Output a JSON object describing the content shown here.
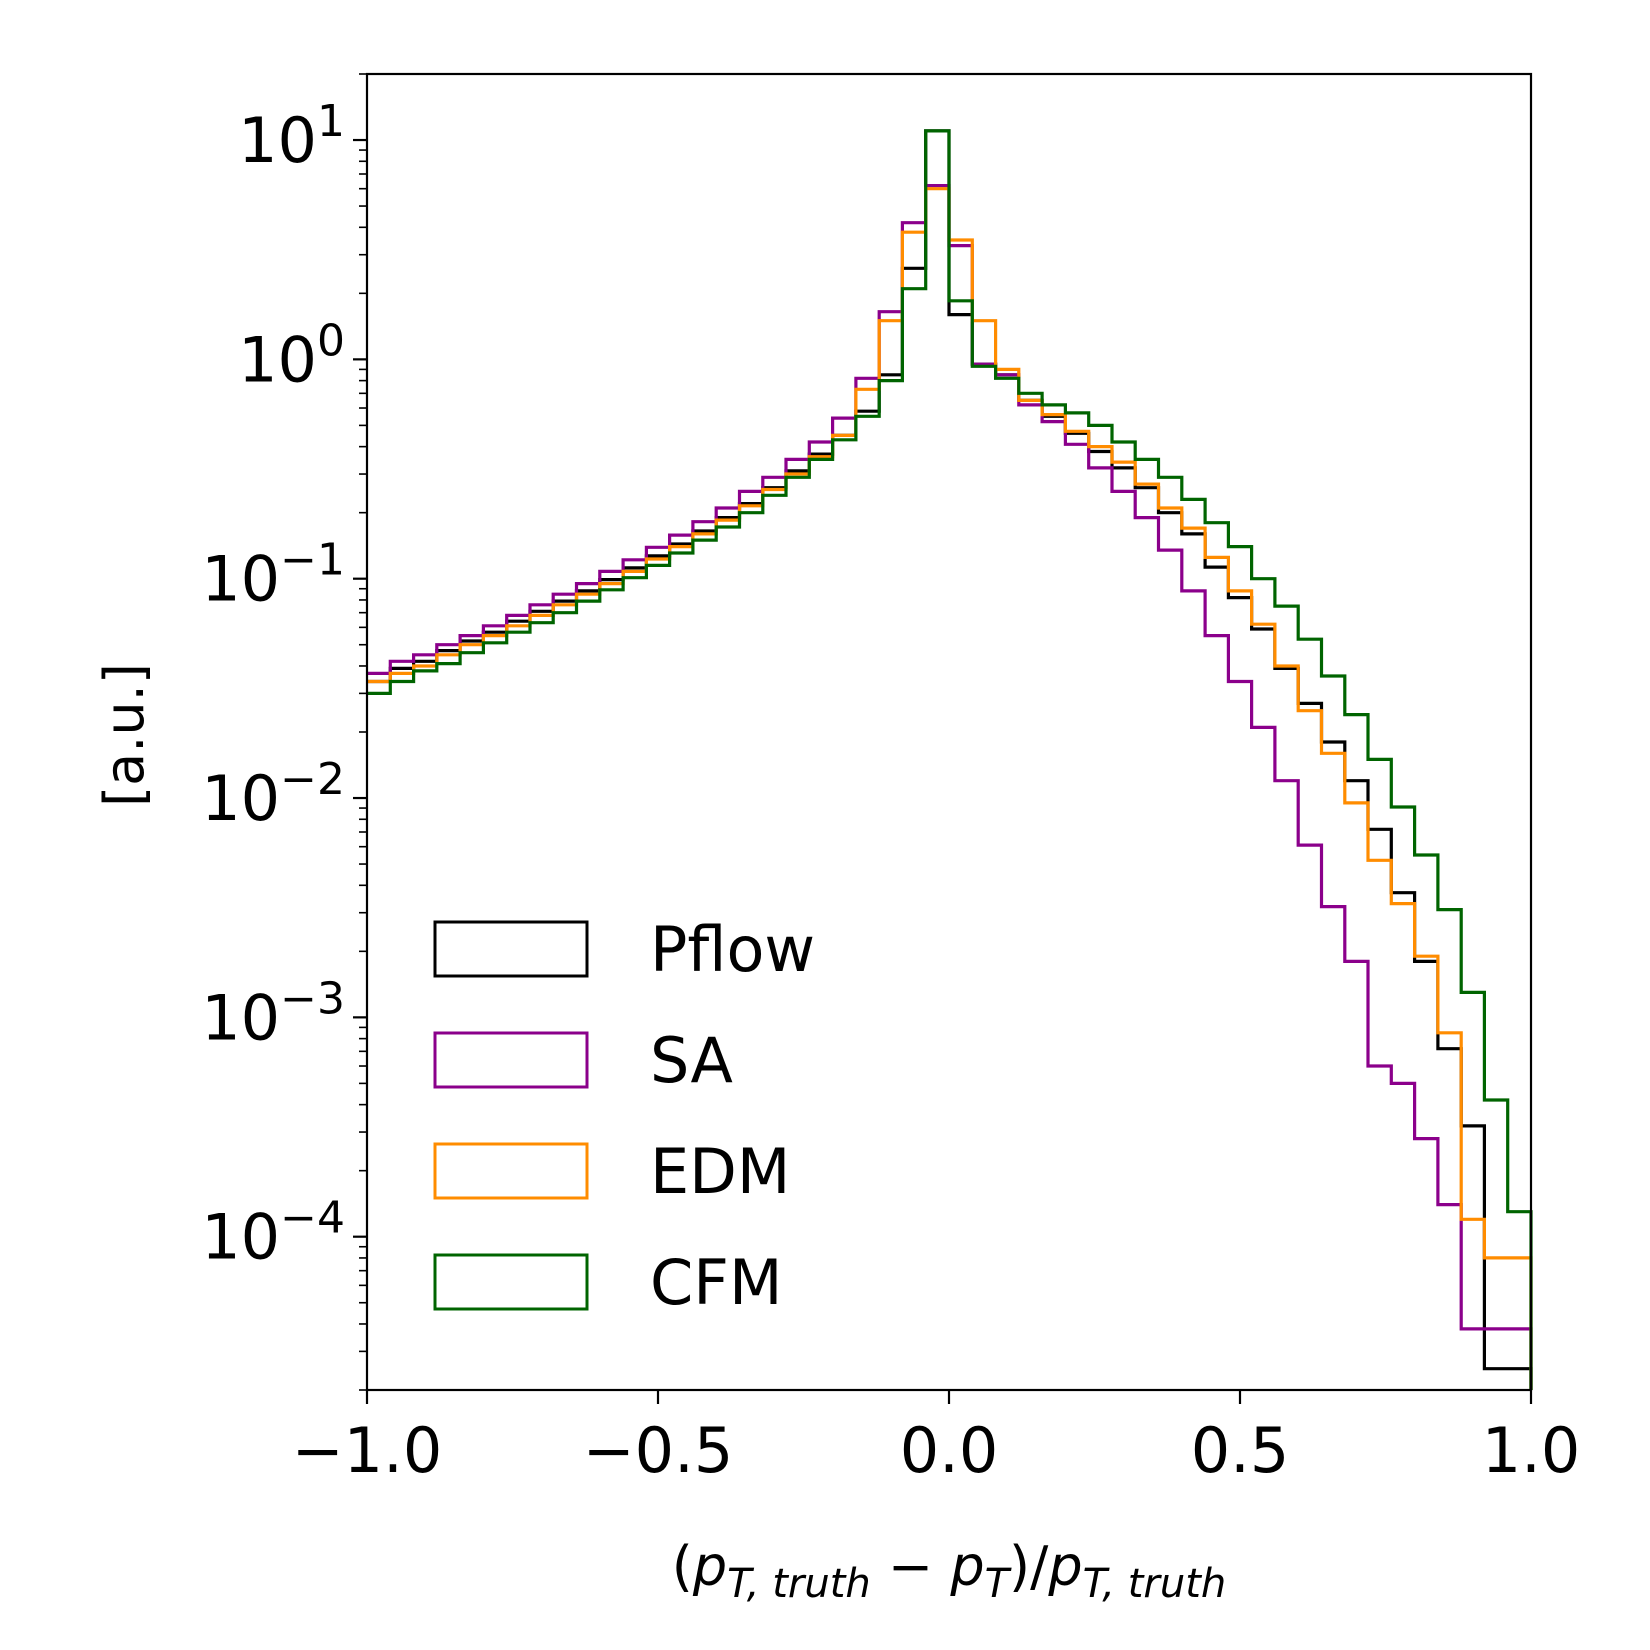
{
  "chart_data": {
    "type": "step-histogram",
    "title": "",
    "xlabel": "(p_T,truth − p_T)/p_T,truth",
    "ylabel": "[a.u.]",
    "xscale": "linear",
    "yscale": "log",
    "xlim": [
      -1.0,
      1.0
    ],
    "ylim": [
      2e-05,
      20
    ],
    "xticks": [
      -1.0,
      -0.5,
      0.0,
      0.5,
      1.0
    ],
    "xtick_labels": [
      "−1.0",
      "−0.5",
      "0.0",
      "0.5",
      "1.0"
    ],
    "yticks": [
      0.0001,
      0.001,
      0.01,
      0.1,
      1,
      10
    ],
    "ytick_labels": [
      {
        "base": "10",
        "exp": "−4"
      },
      {
        "base": "10",
        "exp": "−3"
      },
      {
        "base": "10",
        "exp": "−2"
      },
      {
        "base": "10",
        "exp": "−1"
      },
      {
        "base": "10",
        "exp": "0"
      },
      {
        "base": "10",
        "exp": "1"
      }
    ],
    "legend_position": "lower-left",
    "bin_edges": [
      -1.0,
      -0.96,
      -0.92,
      -0.88,
      -0.84,
      -0.8,
      -0.76,
      -0.72,
      -0.68,
      -0.64,
      -0.6,
      -0.56,
      -0.52,
      -0.48,
      -0.44,
      -0.4,
      -0.36,
      -0.32,
      -0.28,
      -0.24,
      -0.2,
      -0.16,
      -0.12,
      -0.08,
      -0.04,
      0.0,
      0.04,
      0.08,
      0.12,
      0.16,
      0.2,
      0.24,
      0.28,
      0.32,
      0.36,
      0.4,
      0.44,
      0.48,
      0.52,
      0.56,
      0.6,
      0.64,
      0.68,
      0.72,
      0.76,
      0.8,
      0.84,
      0.88,
      0.92,
      0.96,
      1.0
    ],
    "series": [
      {
        "name": "Pflow",
        "color": "#000000",
        "values": [
          0.034,
          0.039,
          0.042,
          0.047,
          0.052,
          0.057,
          0.064,
          0.071,
          0.079,
          0.088,
          0.099,
          0.112,
          0.127,
          0.144,
          0.165,
          0.19,
          0.22,
          0.26,
          0.31,
          0.37,
          0.45,
          0.58,
          0.85,
          2.6,
          11.0,
          1.6,
          0.95,
          0.85,
          0.65,
          0.55,
          0.46,
          0.38,
          0.32,
          0.26,
          0.2,
          0.16,
          0.113,
          0.082,
          0.059,
          0.039,
          0.027,
          0.018,
          0.012,
          0.0072,
          0.0037,
          0.0018,
          0.00072,
          0.00032,
          2.5e-05,
          2.5e-05
        ]
      },
      {
        "name": "SA",
        "color": "#8B008B",
        "values": [
          0.037,
          0.042,
          0.045,
          0.05,
          0.055,
          0.061,
          0.068,
          0.076,
          0.085,
          0.095,
          0.108,
          0.122,
          0.139,
          0.158,
          0.182,
          0.21,
          0.25,
          0.29,
          0.35,
          0.42,
          0.54,
          0.82,
          1.65,
          4.2,
          6.2,
          3.3,
          0.95,
          0.85,
          0.62,
          0.52,
          0.41,
          0.32,
          0.25,
          0.19,
          0.135,
          0.088,
          0.055,
          0.034,
          0.021,
          0.012,
          0.0061,
          0.0032,
          0.0018,
          0.0006,
          0.0005,
          0.00028,
          0.00014,
          3.8e-05,
          3.8e-05,
          3.8e-05
        ]
      },
      {
        "name": "EDM",
        "color": "#FF8C00",
        "values": [
          0.034,
          0.037,
          0.04,
          0.045,
          0.05,
          0.055,
          0.061,
          0.068,
          0.076,
          0.085,
          0.095,
          0.108,
          0.123,
          0.14,
          0.16,
          0.185,
          0.215,
          0.255,
          0.3,
          0.36,
          0.45,
          0.73,
          1.5,
          3.8,
          6.0,
          3.5,
          1.5,
          0.9,
          0.65,
          0.56,
          0.47,
          0.4,
          0.34,
          0.27,
          0.21,
          0.17,
          0.125,
          0.088,
          0.062,
          0.04,
          0.025,
          0.016,
          0.0095,
          0.0052,
          0.0033,
          0.0019,
          0.00085,
          0.00012,
          8e-05,
          8e-05
        ]
      },
      {
        "name": "CFM",
        "color": "#006400",
        "values": [
          0.03,
          0.034,
          0.038,
          0.041,
          0.046,
          0.051,
          0.057,
          0.063,
          0.07,
          0.079,
          0.089,
          0.101,
          0.115,
          0.131,
          0.15,
          0.172,
          0.2,
          0.24,
          0.29,
          0.35,
          0.43,
          0.55,
          0.8,
          2.1,
          11.0,
          1.85,
          0.93,
          0.82,
          0.7,
          0.62,
          0.57,
          0.5,
          0.42,
          0.35,
          0.29,
          0.23,
          0.18,
          0.14,
          0.1,
          0.075,
          0.053,
          0.036,
          0.024,
          0.015,
          0.0091,
          0.0055,
          0.0031,
          0.0013,
          0.00042,
          0.00013
        ]
      }
    ]
  }
}
